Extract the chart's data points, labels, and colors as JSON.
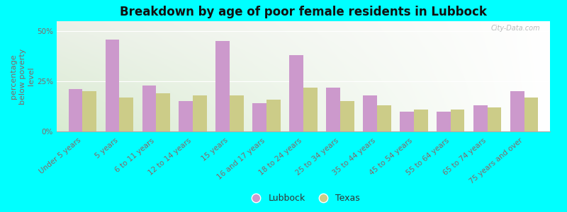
{
  "title": "Breakdown by age of poor female residents in Lubbock",
  "categories": [
    "Under 5 years",
    "5 years",
    "6 to 11 years",
    "12 to 14 years",
    "15 years",
    "16 and 17 years",
    "18 to 24 years",
    "25 to 34 years",
    "35 to 44 years",
    "45 to 54 years",
    "55 to 64 years",
    "65 to 74 years",
    "75 years and over"
  ],
  "lubbock_values": [
    21,
    46,
    23,
    15,
    45,
    14,
    38,
    22,
    18,
    10,
    10,
    13,
    20
  ],
  "texas_values": [
    20,
    17,
    19,
    18,
    18,
    16,
    22,
    15,
    13,
    11,
    11,
    12,
    17
  ],
  "lubbock_color": "#cc99cc",
  "texas_color": "#cccc88",
  "background_color": "#00ffff",
  "ylabel": "percentage\nbelow poverty\nlevel",
  "yticks": [
    0,
    25,
    50
  ],
  "ytick_labels": [
    "0%",
    "25%",
    "50%"
  ],
  "ylim": [
    0,
    55
  ],
  "title_fontsize": 12,
  "axis_label_fontsize": 8,
  "tick_fontsize": 7.5,
  "legend_labels": [
    "Lubbock",
    "Texas"
  ],
  "watermark": "City-Data.com",
  "bar_width": 0.38
}
